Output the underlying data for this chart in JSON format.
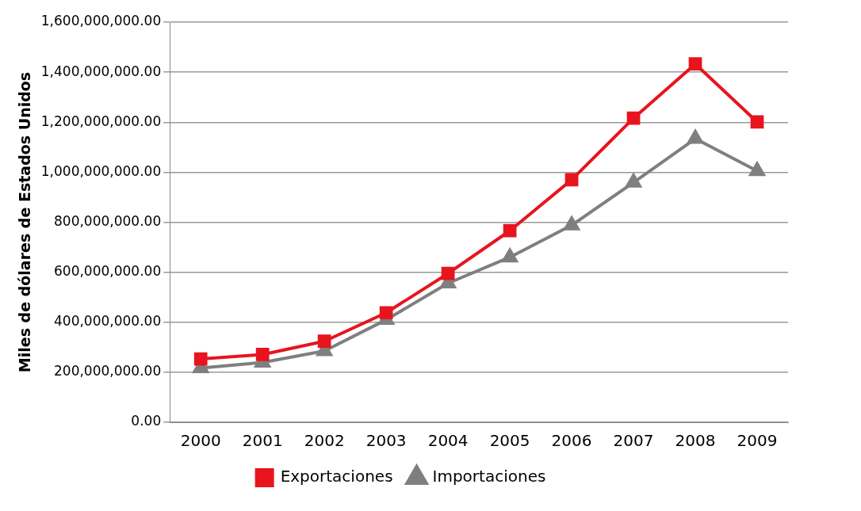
{
  "chart_data": {
    "type": "line",
    "ylabel": "Miles de dólares de Estados Unidos",
    "categories": [
      "2000",
      "2001",
      "2002",
      "2003",
      "2004",
      "2005",
      "2006",
      "2007",
      "2008",
      "2009"
    ],
    "series": [
      {
        "name": "Exportaciones",
        "color": "#e8141e",
        "marker": "square",
        "values": [
          253000000,
          271000000,
          324000000,
          438000000,
          595000000,
          766000000,
          970000000,
          1216000000,
          1433000000,
          1201000000
        ]
      },
      {
        "name": "Importaciones",
        "color": "#7f7f7f",
        "marker": "triangle",
        "values": [
          217000000,
          239000000,
          285000000,
          410000000,
          556000000,
          660000000,
          788000000,
          959000000,
          1134000000,
          1005000000
        ]
      }
    ],
    "ylim": [
      0,
      1600000000
    ],
    "yticks": [
      {
        "value": 0,
        "label": "0.00"
      },
      {
        "value": 200000000,
        "label": "200,000,000.00"
      },
      {
        "value": 400000000,
        "label": "400,000,000.00"
      },
      {
        "value": 600000000,
        "label": "600,000,000.00"
      },
      {
        "value": 800000000,
        "label": "800,000,000.00"
      },
      {
        "value": 1000000000,
        "label": "1,000,000,000.00"
      },
      {
        "value": 1200000000,
        "label": "1,200,000,000.00"
      },
      {
        "value": 1400000000,
        "label": "1,400,000,000.00"
      },
      {
        "value": 1600000000,
        "label": "1,600,000,000.00"
      }
    ],
    "grid": "y",
    "legend": "bottom"
  }
}
